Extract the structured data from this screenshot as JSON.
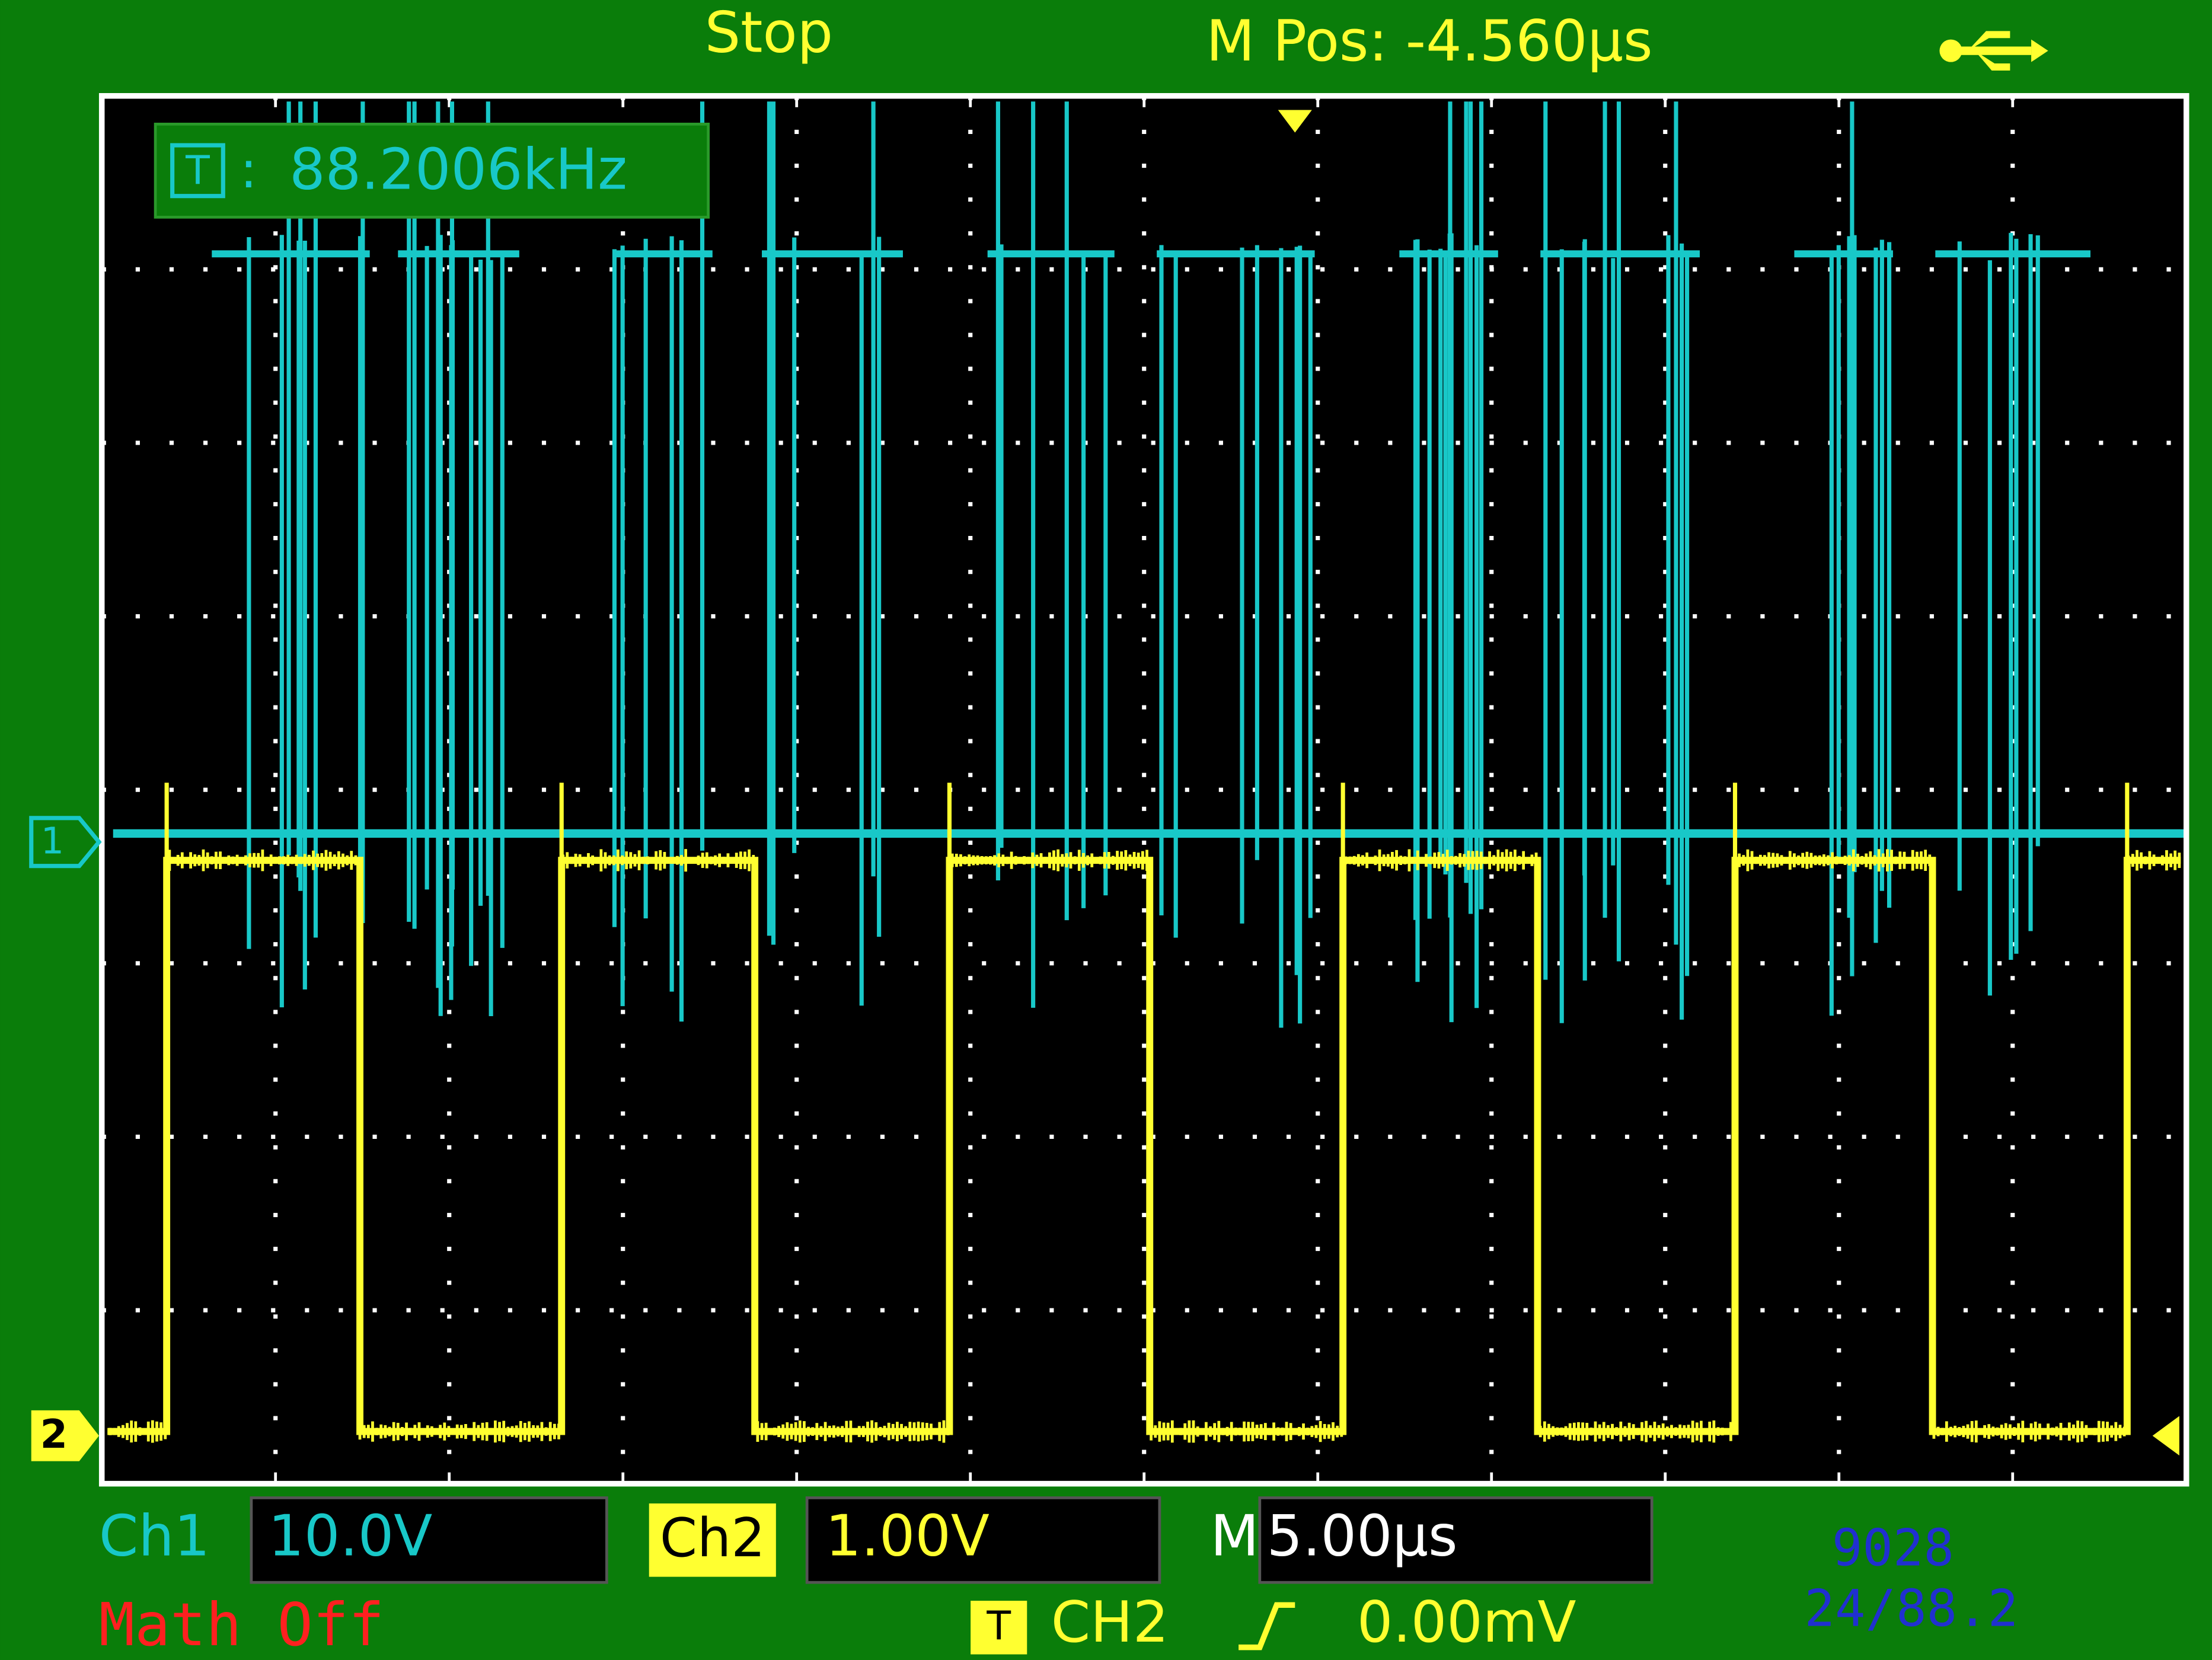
{
  "header": {
    "status": "Stop",
    "position": "M Pos: -4.560µs"
  },
  "measure": {
    "icon": "T",
    "separator": ":",
    "value": "88.2006kHz"
  },
  "markers": {
    "ch1": "1",
    "ch2": "2"
  },
  "footer": {
    "ch1": {
      "label": "Ch1",
      "scale": "10.0V"
    },
    "ch2": {
      "label": "Ch2",
      "scale": "1.00V"
    },
    "timebase": {
      "label": "M",
      "scale": "5.00µs"
    },
    "math": "Math Off",
    "trigger": {
      "icon": "T",
      "source": "CH2",
      "level": "0.00mV"
    },
    "notes": [
      "9028",
      "24/88.2"
    ]
  }
}
